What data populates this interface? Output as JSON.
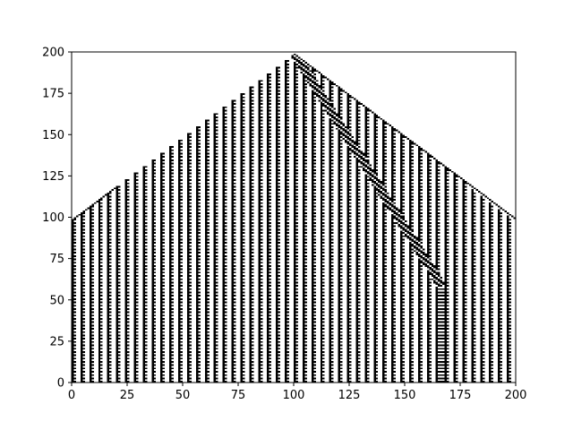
{
  "chart_data": {
    "type": "heatmap",
    "title": "",
    "xlabel": "",
    "ylabel": "",
    "xlim": [
      0,
      200
    ],
    "ylim": [
      0,
      200
    ],
    "x_ticks": [
      0,
      25,
      50,
      75,
      100,
      125,
      150,
      175,
      200
    ],
    "y_ticks": [
      0,
      25,
      50,
      75,
      100,
      125,
      150,
      175,
      200
    ],
    "grid": false,
    "legend": "none",
    "colormap": [
      "#ffffff",
      "#000000"
    ],
    "description_values": {
      "apex": [
        100,
        200
      ],
      "left_edge_at_x0": 99,
      "right_edge_at_x200": 99,
      "defect_column_x": 167,
      "defect_start_y": 58
    }
  }
}
